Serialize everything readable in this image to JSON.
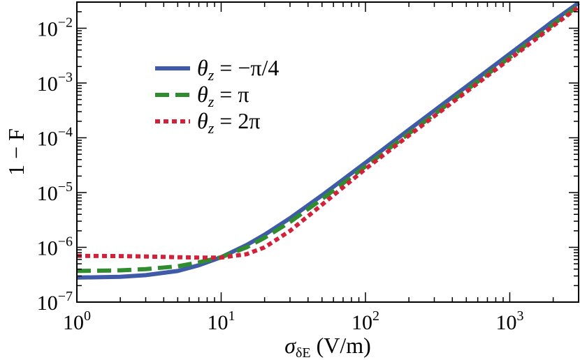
{
  "chart_data": {
    "type": "line",
    "xlabel": "σ",
    "xlabel_sub": "δE",
    "xlabel_unit": " (V/m)",
    "ylabel": "1 − F",
    "xscale": "log",
    "yscale": "log",
    "xlim": [
      1,
      3000
    ],
    "ylim": [
      1e-07,
      0.03
    ],
    "grid": false,
    "legend_position": "top-left",
    "x_ticks": [
      {
        "value": 1,
        "base": "10",
        "exp": "0"
      },
      {
        "value": 10,
        "base": "10",
        "exp": "1"
      },
      {
        "value": 100,
        "base": "10",
        "exp": "2"
      },
      {
        "value": 1000,
        "base": "10",
        "exp": "3"
      }
    ],
    "y_ticks": [
      {
        "value": 1e-07,
        "base": "10",
        "exp": "−7"
      },
      {
        "value": 1e-06,
        "base": "10",
        "exp": "−6"
      },
      {
        "value": 1e-05,
        "base": "10",
        "exp": "−5"
      },
      {
        "value": 0.0001,
        "base": "10",
        "exp": "−4"
      },
      {
        "value": 0.001,
        "base": "10",
        "exp": "−3"
      },
      {
        "value": 0.01,
        "base": "10",
        "exp": "−2"
      }
    ],
    "series": [
      {
        "name_symbol": "θ",
        "name_sub": "z",
        "name_rest": " = −π/4",
        "color": "#3f5ba8",
        "style": "solid",
        "x": [
          1,
          2,
          3,
          5,
          7,
          10,
          15,
          20,
          30,
          50,
          100,
          200,
          500,
          1000,
          2000,
          3000
        ],
        "y": [
          2.8e-07,
          2.9e-07,
          3.1e-07,
          3.7e-07,
          4.7e-07,
          6.6e-07,
          1.1e-06,
          1.7e-06,
          3.4e-06,
          8.9e-06,
          3.5e-05,
          0.00014,
          0.00086,
          0.0034,
          0.0135,
          0.029
        ]
      },
      {
        "name_symbol": "θ",
        "name_sub": "z",
        "name_rest": " = π",
        "color": "#2f8c2f",
        "style": "dashed",
        "x": [
          1,
          2,
          3,
          5,
          7,
          10,
          15,
          20,
          30,
          50,
          100,
          200,
          500,
          1000,
          2000,
          3000
        ],
        "y": [
          3.7e-07,
          3.8e-07,
          4e-07,
          4.5e-07,
          5.3e-07,
          6.6e-07,
          1e-06,
          1.5e-06,
          2.9e-06,
          7.6e-06,
          3e-05,
          0.00012,
          0.00074,
          0.00295,
          0.0118,
          0.026
        ]
      },
      {
        "name_symbol": "θ",
        "name_sub": "z",
        "name_rest": " = 2π",
        "color": "#d2223a",
        "style": "dotted",
        "x": [
          1,
          2,
          3,
          5,
          7,
          10,
          15,
          20,
          30,
          50,
          100,
          200,
          500,
          1000,
          2000,
          3000
        ],
        "y": [
          7e-07,
          6.9e-07,
          6.8e-07,
          6.6e-07,
          6.5e-07,
          6.5e-07,
          7.5e-07,
          1e-06,
          2e-06,
          6e-06,
          2.7e-05,
          0.00011,
          0.00069,
          0.00275,
          0.011,
          0.0245
        ]
      }
    ]
  }
}
